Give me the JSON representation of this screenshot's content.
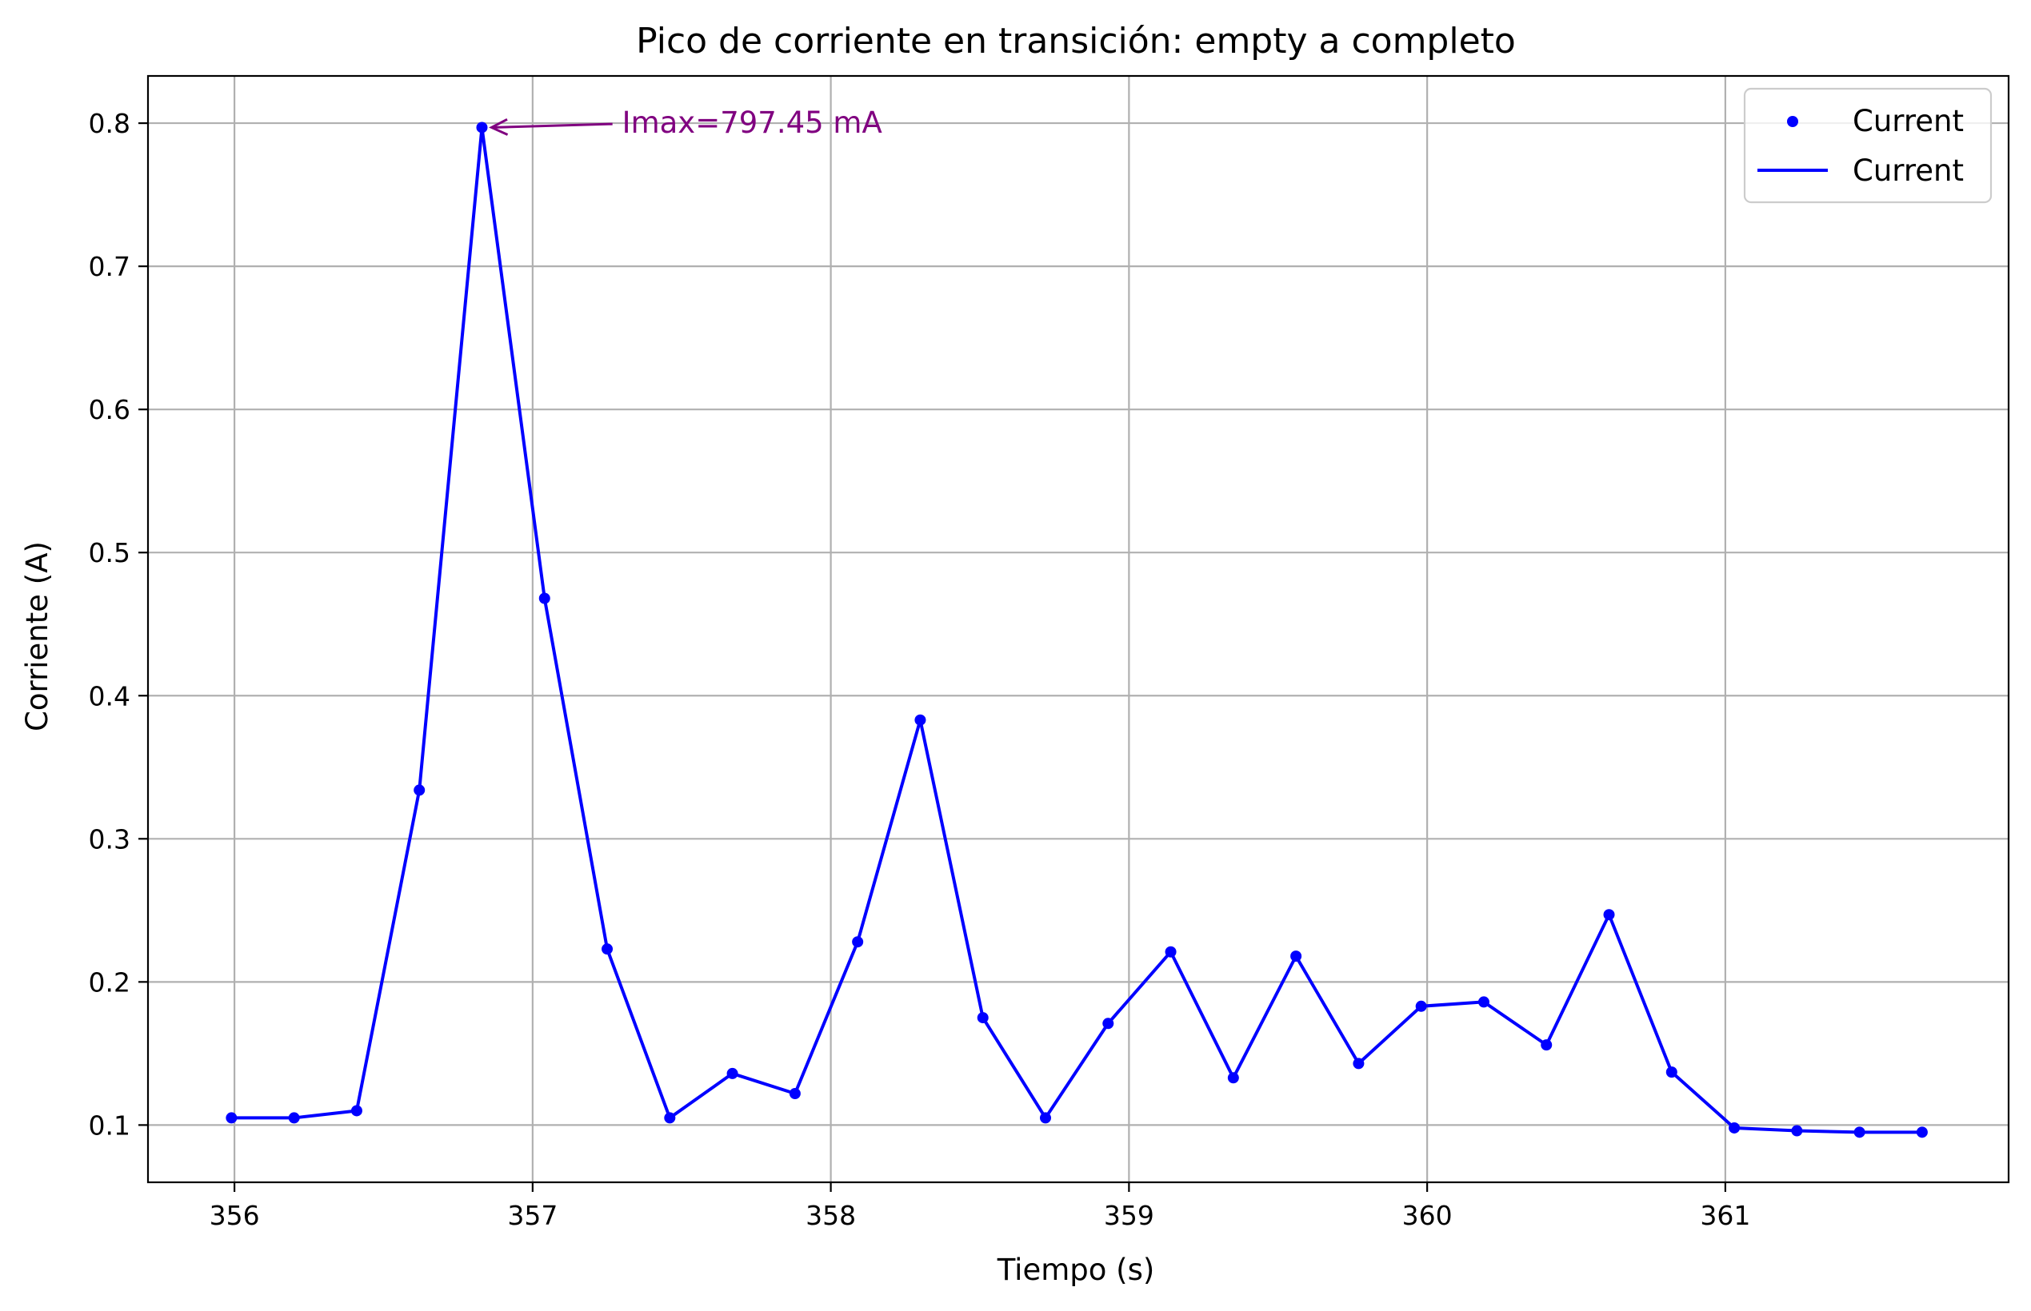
{
  "chart_data": {
    "type": "line",
    "title": "Pico de corriente en transición: empty a completo",
    "xlabel": "Tiempo (s)",
    "ylabel": "Corriente (A)",
    "xlim": [
      355.71,
      361.95
    ],
    "ylim": [
      0.06,
      0.833
    ],
    "x_ticks": [
      356,
      357,
      358,
      359,
      360,
      361
    ],
    "x_tick_labels": [
      "356",
      "357",
      "358",
      "359",
      "360",
      "361"
    ],
    "y_ticks": [
      0.1,
      0.2,
      0.3,
      0.4,
      0.5,
      0.6,
      0.7,
      0.8
    ],
    "y_tick_labels": [
      "0.1",
      "0.2",
      "0.3",
      "0.4",
      "0.5",
      "0.6",
      "0.7",
      "0.8"
    ],
    "grid": true,
    "legend_position": "top-right",
    "colors": {
      "series": "#0000ff",
      "annotation": "#800080"
    },
    "x": [
      355.99,
      356.2,
      356.41,
      356.62,
      356.83,
      357.04,
      357.25,
      357.46,
      357.67,
      357.88,
      358.09,
      358.3,
      358.51,
      358.72,
      358.93,
      359.14,
      359.35,
      359.56,
      359.77,
      359.98,
      360.19,
      360.4,
      360.61,
      360.82,
      361.03,
      361.24,
      361.45,
      361.66
    ],
    "series": [
      {
        "name": "Current",
        "style": "markers",
        "values": [
          0.105,
          0.105,
          0.11,
          0.334,
          0.797,
          0.468,
          0.223,
          0.105,
          0.136,
          0.122,
          0.228,
          0.383,
          0.175,
          0.105,
          0.171,
          0.221,
          0.133,
          0.218,
          0.143,
          0.183,
          0.186,
          0.156,
          0.247,
          0.137,
          0.098,
          0.096,
          0.095,
          0.095
        ]
      },
      {
        "name": "Current",
        "style": "line",
        "values": [
          0.105,
          0.105,
          0.11,
          0.334,
          0.797,
          0.468,
          0.223,
          0.105,
          0.136,
          0.122,
          0.228,
          0.383,
          0.175,
          0.105,
          0.171,
          0.221,
          0.133,
          0.218,
          0.143,
          0.183,
          0.186,
          0.156,
          0.247,
          0.137,
          0.098,
          0.096,
          0.095,
          0.095
        ]
      }
    ],
    "annotations": [
      {
        "text": "Imax=797.45 mA",
        "x": 356.83,
        "y": 0.797,
        "text_x": 357.3,
        "text_y": 0.8
      }
    ]
  }
}
